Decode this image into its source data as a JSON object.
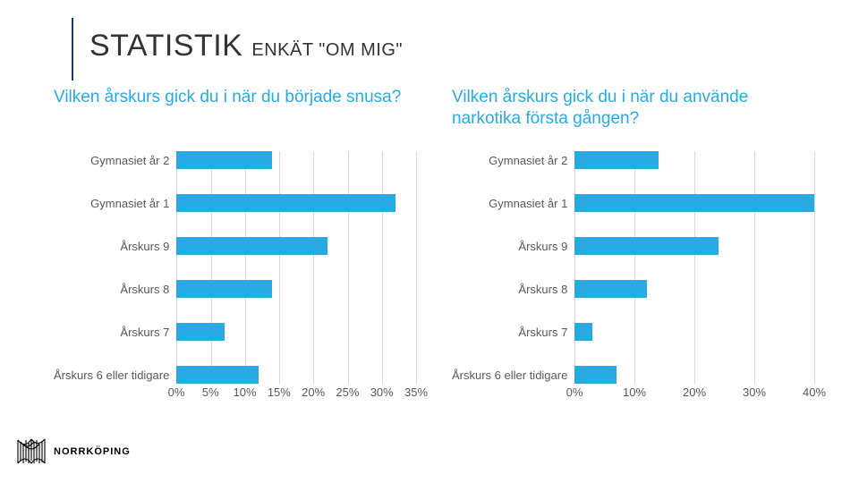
{
  "heading": {
    "prefix": "STATISTIK",
    "suffix": "ENKÄT \"OM MIG\""
  },
  "accent_color": "#1f3a5f",
  "bar_color": "#29abe2",
  "grid_color": "#d9d9d9",
  "label_color": "#595959",
  "title_color_left": "#29abe2",
  "title_color_right": "#29abe2",
  "categories": [
    "Gymnasiet år 2",
    "Gymnasiet år 1",
    "Årskurs 9",
    "Årskurs 8",
    "Årskurs 7",
    "Årskurs 6 eller tidigare"
  ],
  "charts": [
    {
      "title": "Vilken årskurs gick du i när du började snusa?",
      "xmax": 35,
      "tick_step": 5,
      "ticks": [
        "0%",
        "5%",
        "10%",
        "15%",
        "20%",
        "25%",
        "30%",
        "35%"
      ],
      "values": [
        14,
        32,
        22,
        14,
        7,
        12
      ]
    },
    {
      "title": "Vilken årskurs gick du i när du använde narkotika första gången?",
      "xmax": 40,
      "tick_step": 10,
      "ticks": [
        "0%",
        "10%",
        "20%",
        "30%",
        "40%"
      ],
      "values": [
        14,
        40,
        24,
        12,
        3,
        7
      ]
    }
  ],
  "logo": {
    "text": "NORRKÖPING"
  }
}
